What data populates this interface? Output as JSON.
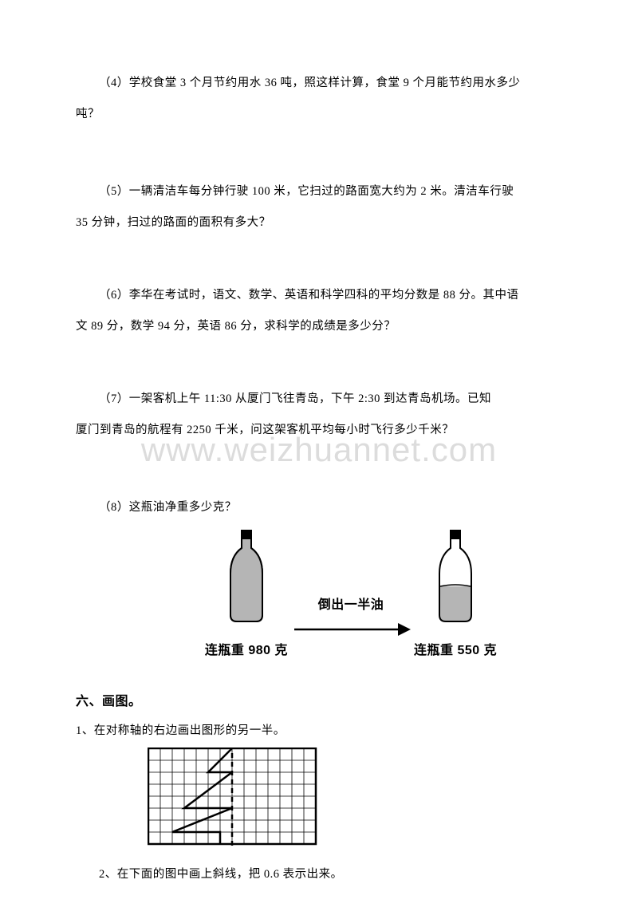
{
  "watermark": "www.weizhuannet.com",
  "q4": "（4）学校食堂 3 个月节约用水 36 吨，照这样计算，食堂 9 个月能节约用水多少",
  "q4b": "吨？",
  "q5": "（5）一辆清洁车每分钟行驶 100 米，它扫过的路面宽大约为 2 米。清洁车行驶",
  "q5b": "35 分钟，扫过的路面的面积有多大？",
  "q6": "（6）李华在考试时，语文、数学、英语和科学四科的平均分数是 88 分。其中语",
  "q6b": "文 89 分，数学 94 分，英语 86 分，求科学的成绩是多少分？",
  "q7": "（7）一架客机上午 11:30 从厦门飞往青岛，下午 2:30 到达青岛机场。已知",
  "q7b": "厦门到青岛的航程有 2250 千米，问这架客机平均每小时飞行多少千米？",
  "q8": "（8）这瓶油净重多少克？",
  "bottle": {
    "arrow_label": "倒出一半油",
    "cap_left": "连瓶重 980 克",
    "cap_right": "连瓶重 550 克",
    "fill_full": "#b5b5b5",
    "fill_half": "#b5b5b5",
    "stroke": "#000000"
  },
  "section6": "六、画图。",
  "s6q1": "1、在对称轴的右边画出图形的另一半。",
  "s6q2": "2、在下面的图中画上斜线，把 0.6 表示出来。",
  "grid": {
    "cols": 14,
    "rows": 8,
    "cell": 15,
    "stroke": "#000000"
  }
}
